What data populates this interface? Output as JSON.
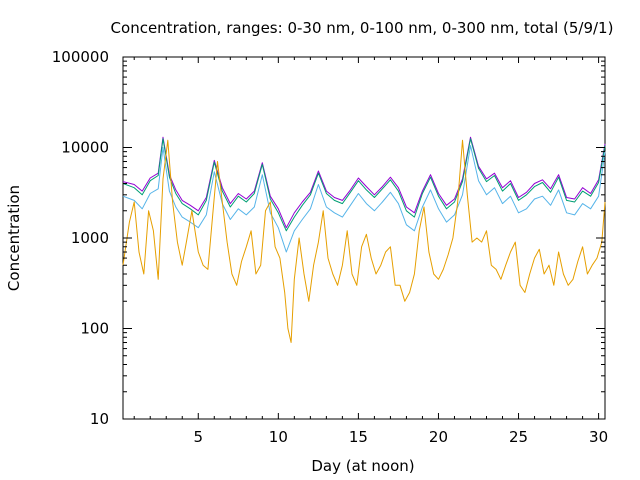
{
  "chart_data": {
    "type": "line",
    "title": "Concentration, ranges: 0-30 nm, 0-100 nm, 0-300 nm, total (5/9/1)",
    "xlabel": "Day (at noon)",
    "ylabel": "Concentration",
    "xlim": [
      0.3,
      30.4
    ],
    "ylim": [
      10,
      100000
    ],
    "yscale": "log",
    "grid": false,
    "legend": "none",
    "x_ticks": [
      5,
      10,
      15,
      20,
      25,
      30
    ],
    "x_tick_labels": [
      "5",
      "10",
      "15",
      "20",
      "25",
      "30"
    ],
    "y_ticks": [
      10,
      100,
      1000,
      10000,
      100000
    ],
    "y_tick_labels": [
      "10",
      "100",
      "1000",
      "10000",
      "100000"
    ],
    "series": [
      {
        "color": "#9400d3",
        "x": [
          0.3,
          1,
          1.5,
          2,
          2.5,
          2.8,
          3.2,
          3.6,
          4,
          4.5,
          5,
          5.5,
          6,
          6.5,
          7,
          7.5,
          8,
          8.5,
          9,
          9.5,
          10,
          10.5,
          11,
          11.5,
          12,
          12.5,
          13,
          13.5,
          14,
          14.5,
          15,
          15.5,
          16,
          16.5,
          17,
          17.5,
          18,
          18.5,
          19,
          19.5,
          20,
          20.5,
          21,
          21.5,
          22,
          22.5,
          23,
          23.5,
          24,
          24.5,
          25,
          25.5,
          26,
          26.5,
          27,
          27.5,
          28,
          28.5,
          29,
          29.5,
          30,
          30.4
        ],
        "y": [
          4200,
          3900,
          3300,
          4600,
          5200,
          13000,
          5000,
          3400,
          2600,
          2300,
          2000,
          2800,
          7200,
          3600,
          2400,
          3100,
          2700,
          3300,
          6800,
          2900,
          2100,
          1300,
          1900,
          2500,
          3200,
          5500,
          3300,
          2800,
          2600,
          3400,
          4600,
          3700,
          3000,
          3700,
          4700,
          3600,
          2200,
          1900,
          3300,
          5000,
          3100,
          2300,
          2700,
          4500,
          13000,
          6200,
          4500,
          5200,
          3600,
          4300,
          2800,
          3200,
          4000,
          4400,
          3500,
          5000,
          2800,
          2700,
          3600,
          3100,
          4400,
          11000
        ]
      },
      {
        "color": "#009e73",
        "x": [
          0.3,
          1,
          1.5,
          2,
          2.5,
          2.8,
          3.2,
          3.6,
          4,
          4.5,
          5,
          5.5,
          6,
          6.5,
          7,
          7.5,
          8,
          8.5,
          9,
          9.5,
          10,
          10.5,
          11,
          11.5,
          12,
          12.5,
          13,
          13.5,
          14,
          14.5,
          15,
          15.5,
          16,
          16.5,
          17,
          17.5,
          18,
          18.5,
          19,
          19.5,
          20,
          20.5,
          21,
          21.5,
          22,
          22.5,
          23,
          23.5,
          24,
          24.5,
          25,
          25.5,
          26,
          26.5,
          27,
          27.5,
          28,
          28.5,
          29,
          29.5,
          30,
          30.4
        ],
        "y": [
          4000,
          3600,
          3000,
          4300,
          4900,
          12500,
          4700,
          3100,
          2400,
          2100,
          1800,
          2600,
          6900,
          3300,
          2200,
          2900,
          2500,
          3100,
          6500,
          2700,
          1900,
          1200,
          1700,
          2300,
          3000,
          5200,
          3100,
          2600,
          2400,
          3200,
          4300,
          3400,
          2800,
          3500,
          4400,
          3300,
          2000,
          1700,
          3100,
          4700,
          2900,
          2100,
          2500,
          4200,
          12500,
          5900,
          4200,
          4900,
          3300,
          4000,
          2600,
          3000,
          3700,
          4100,
          3200,
          4700,
          2600,
          2500,
          3300,
          2900,
          4100,
          10500
        ]
      },
      {
        "color": "#56b4e9",
        "x": [
          0.3,
          1,
          1.5,
          2,
          2.5,
          2.8,
          3.2,
          3.6,
          4,
          4.5,
          5,
          5.5,
          6,
          6.5,
          7,
          7.5,
          8,
          8.5,
          9,
          9.5,
          10,
          10.5,
          11,
          11.5,
          12,
          12.5,
          13,
          13.5,
          14,
          14.5,
          15,
          15.5,
          16,
          16.5,
          17,
          17.5,
          18,
          18.5,
          19,
          19.5,
          20,
          20.5,
          21,
          21.5,
          22,
          22.5,
          23,
          23.5,
          24,
          24.5,
          25,
          25.5,
          26,
          26.5,
          27,
          27.5,
          28,
          28.5,
          29,
          29.5,
          30,
          30.4
        ],
        "y": [
          2900,
          2600,
          2100,
          3100,
          3500,
          10000,
          3300,
          2200,
          1700,
          1500,
          1300,
          1800,
          5400,
          2400,
          1600,
          2100,
          1800,
          2200,
          5000,
          1900,
          1300,
          700,
          1200,
          1600,
          2100,
          3900,
          2200,
          1900,
          1700,
          2300,
          3100,
          2400,
          2000,
          2500,
          3200,
          2400,
          1400,
          1200,
          2200,
          3400,
          2100,
          1500,
          1800,
          3000,
          10500,
          4300,
          3000,
          3600,
          2400,
          2900,
          1900,
          2100,
          2700,
          2900,
          2300,
          3400,
          1900,
          1800,
          2400,
          2100,
          2900,
          9000
        ]
      },
      {
        "color": "#e69f00",
        "x": [
          0.3,
          0.7,
          1,
          1.3,
          1.6,
          1.9,
          2.2,
          2.5,
          2.8,
          3.1,
          3.4,
          3.7,
          4,
          4.3,
          4.6,
          5,
          5.3,
          5.6,
          5.9,
          6.2,
          6.5,
          6.8,
          7.1,
          7.4,
          7.7,
          8,
          8.3,
          8.6,
          8.9,
          9.2,
          9.5,
          9.8,
          10.1,
          10.4,
          10.6,
          10.8,
          11,
          11.3,
          11.6,
          11.9,
          12.2,
          12.5,
          12.8,
          13.1,
          13.4,
          13.7,
          14,
          14.3,
          14.6,
          14.9,
          15.2,
          15.5,
          15.8,
          16.1,
          16.4,
          16.7,
          17,
          17.3,
          17.6,
          17.9,
          18.2,
          18.5,
          18.8,
          19.1,
          19.4,
          19.7,
          20,
          20.3,
          20.6,
          20.9,
          21.2,
          21.5,
          21.8,
          22.1,
          22.4,
          22.7,
          23,
          23.3,
          23.6,
          23.9,
          24.2,
          24.5,
          24.8,
          25.1,
          25.4,
          25.7,
          26,
          26.3,
          26.6,
          26.9,
          27.2,
          27.5,
          27.8,
          28.1,
          28.4,
          28.7,
          29,
          29.3,
          29.6,
          29.9,
          30.2,
          30.4
        ],
        "y": [
          500,
          1500,
          2500,
          700,
          400,
          2000,
          1200,
          350,
          4500,
          12000,
          2500,
          900,
          500,
          1000,
          2000,
          700,
          500,
          450,
          1800,
          7000,
          2500,
          900,
          400,
          300,
          550,
          800,
          1200,
          400,
          500,
          2000,
          2500,
          800,
          600,
          250,
          100,
          70,
          350,
          1000,
          400,
          200,
          500,
          900,
          2000,
          600,
          400,
          300,
          500,
          1200,
          400,
          300,
          800,
          1100,
          600,
          400,
          500,
          700,
          800,
          300,
          300,
          200,
          250,
          400,
          1200,
          2200,
          700,
          400,
          350,
          450,
          650,
          1000,
          2500,
          12000,
          3000,
          900,
          1000,
          900,
          1200,
          500,
          450,
          350,
          500,
          700,
          900,
          300,
          250,
          400,
          600,
          750,
          400,
          500,
          300,
          700,
          400,
          300,
          350,
          550,
          800,
          400,
          500,
          600,
          900,
          2500
        ]
      }
    ]
  }
}
